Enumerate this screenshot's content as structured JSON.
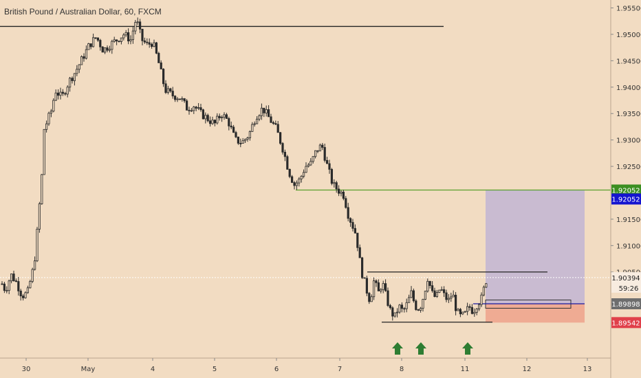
{
  "chart_data": {
    "type": "candlestick",
    "title": "British Pound / Australian Dollar, 60, FXCM",
    "xlabel": "",
    "ylabel": "",
    "ylim": [
      1.8887,
      1.9565
    ],
    "x_ticks": [
      "30",
      "May",
      "4",
      "5",
      "6",
      "7",
      "8",
      "11",
      "12",
      "13"
    ],
    "y_ticks": [
      "1.95500",
      "1.95000",
      "1.94500",
      "1.94000",
      "1.93500",
      "1.93000",
      "1.92500",
      "1.91500",
      "1.91000",
      "1.90500"
    ],
    "price_labels": {
      "target_line": "1.92052",
      "target_box": "1.92052",
      "last_price": "1.90394",
      "countdown": "59:26",
      "entry": "1.89898",
      "stop": "1.89542"
    },
    "levels": {
      "resistance_top": 1.9515,
      "target": 1.92052,
      "range_high": 1.905,
      "range_low": 1.8955,
      "entry": 1.89898,
      "stop": 1.89542,
      "last": 1.90394
    },
    "candle_path": [
      [
        0,
        1.9035
      ],
      [
        8,
        1.9015
      ],
      [
        16,
        1.9045
      ],
      [
        24,
        1.903
      ],
      [
        32,
        1.9005
      ],
      [
        40,
        1.901
      ],
      [
        48,
        1.9055
      ],
      [
        52,
        1.909
      ],
      [
        56,
        1.916
      ],
      [
        60,
        1.921
      ],
      [
        64,
        1.932
      ],
      [
        70,
        1.934
      ],
      [
        76,
        1.936
      ],
      [
        80,
        1.9395
      ],
      [
        90,
        1.938
      ],
      [
        100,
        1.941
      ],
      [
        110,
        1.943
      ],
      [
        120,
        1.9455
      ],
      [
        130,
        1.948
      ],
      [
        140,
        1.9495
      ],
      [
        150,
        1.947
      ],
      [
        160,
        1.948
      ],
      [
        170,
        1.949
      ],
      [
        180,
        1.95
      ],
      [
        190,
        1.949
      ],
      [
        198,
        1.953
      ],
      [
        206,
        1.949
      ],
      [
        214,
        1.948
      ],
      [
        222,
        1.9485
      ],
      [
        230,
        1.945
      ],
      [
        240,
        1.9395
      ],
      [
        250,
        1.9385
      ],
      [
        262,
        1.938
      ],
      [
        272,
        1.936
      ],
      [
        282,
        1.9365
      ],
      [
        292,
        1.935
      ],
      [
        302,
        1.934
      ],
      [
        312,
        1.933
      ],
      [
        322,
        1.935
      ],
      [
        332,
        1.9335
      ],
      [
        342,
        1.93
      ],
      [
        352,
        1.9295
      ],
      [
        362,
        1.931
      ],
      [
        372,
        1.9345
      ],
      [
        382,
        1.936
      ],
      [
        392,
        1.934
      ],
      [
        402,
        1.932
      ],
      [
        412,
        1.928
      ],
      [
        420,
        1.924
      ],
      [
        428,
        1.9215
      ],
      [
        436,
        1.9225
      ],
      [
        444,
        1.925
      ],
      [
        452,
        1.9255
      ],
      [
        460,
        1.928
      ],
      [
        468,
        1.929
      ],
      [
        476,
        1.925
      ],
      [
        484,
        1.9215
      ],
      [
        492,
        1.9205
      ],
      [
        500,
        1.9195
      ],
      [
        506,
        1.916
      ],
      [
        512,
        1.914
      ],
      [
        518,
        1.912
      ],
      [
        522,
        1.908
      ],
      [
        526,
        1.905
      ],
      [
        532,
        1.902
      ],
      [
        538,
        1.8995
      ],
      [
        544,
        1.9035
      ],
      [
        550,
        1.901
      ],
      [
        556,
        1.903
      ],
      [
        562,
        1.9
      ],
      [
        568,
        1.8975
      ],
      [
        574,
        1.8965
      ],
      [
        580,
        1.8985
      ],
      [
        586,
        1.8975
      ],
      [
        592,
        1.899
      ],
      [
        598,
        1.901
      ],
      [
        604,
        1.8985
      ],
      [
        610,
        1.898
      ],
      [
        616,
        1.9005
      ],
      [
        622,
        1.904
      ],
      [
        628,
        1.901
      ],
      [
        634,
        1.9
      ],
      [
        640,
        1.902
      ],
      [
        646,
        1.9005
      ],
      [
        652,
        1.8995
      ],
      [
        658,
        1.901
      ],
      [
        664,
        1.8975
      ],
      [
        670,
        1.8965
      ],
      [
        676,
        1.897
      ],
      [
        682,
        1.8985
      ],
      [
        688,
        1.8975
      ],
      [
        694,
        1.899
      ],
      [
        700,
        1.9
      ],
      [
        704,
        1.902
      ],
      [
        708,
        1.904
      ]
    ]
  },
  "colors": {
    "background": "#f2dcc2",
    "candle": "#2b2b2b",
    "target_line": "#5aa02c",
    "target_badge": "#3c8f22",
    "target_box_badge": "#1414d0",
    "entry_badge": "#6e6e6e",
    "stop_badge": "#e0404a",
    "profit_zone": "#c9bbd1",
    "loss_zone": "#efab93",
    "arrow": "#2e7d32",
    "entry_rect": "#1a1aa0"
  },
  "icons": [
    "up-arrow-icon"
  ]
}
